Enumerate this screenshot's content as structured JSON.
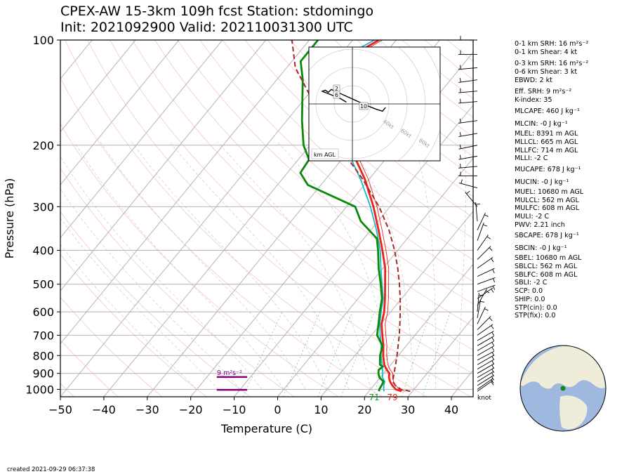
{
  "title_line1": "CPEX-AW 15-3km  109h fcst  Station: stdomingo",
  "title_line2": "Init: 2021092900  Valid: 202110031300 UTC",
  "footer": "created 2021-09-29 06:37:38",
  "indices": [
    "0-1 km SRH: 16 m²s⁻²",
    "0-1 km Shear: 4 kt",
    "0-3 km SRH: 16 m²s⁻²",
    "0-6 km Shear: 3 kt",
    "EBWD: 2 kt",
    "Eff. SRH: 9 m²s⁻²",
    "K-index: 35",
    "MLCAPE: 460 J kg⁻¹",
    "MLCIN: -0 J kg⁻¹",
    "MLEL: 8391 m AGL",
    "MLLCL: 665 m AGL",
    "MLLFC: 714 m AGL",
    "MLLI: -2 C",
    "MUCAPE: 678 J kg⁻¹",
    "MUCIN: -0 J kg⁻¹",
    "MUEL: 10680 m AGL",
    "MULCL: 562 m AGL",
    "MULFC: 608 m AGL",
    "MULI: -2 C",
    "PWV: 2.21 inch",
    "SBCAPE: 678 J kg⁻¹",
    "SBCIN: -0 J kg⁻¹",
    "SBEL: 10680 m AGL",
    "SBLCL: 562 m AGL",
    "SBLFC: 608 m AGL",
    "SBLI: -2 C",
    "SCP: 0.0",
    "SHIP: 0.0",
    "STP(cin): 0.0",
    "STP(fix): 0.0"
  ],
  "chart_data": {
    "type": "line",
    "subtype": "skew-T log-P sounding",
    "xlabel": "Temperature (C)",
    "ylabel": "Pressure (hPa)",
    "xlim": [
      -50,
      45
    ],
    "ylim": [
      1050,
      100
    ],
    "y_scale": "log",
    "x_ticks": [
      "−50",
      "−40",
      "−30",
      "−20",
      "−10",
      "0",
      "10",
      "20",
      "30",
      "40"
    ],
    "y_ticks": [
      1000,
      900,
      800,
      700,
      600,
      500,
      400,
      300,
      200,
      100
    ],
    "surface_temperature_label": "79",
    "surface_dewpoint_label": "71",
    "wind_units_label": "knot",
    "srh_bar_label": "9 m²s⁻²",
    "colors": {
      "temperature": "#e8231e",
      "dewpoint": "#0a8a0a",
      "wetbulb": "#1ab8c4",
      "parcel": "#a52a2a",
      "srh": "#800080"
    },
    "series": [
      {
        "key": "temperature",
        "points": [
          [
            1013,
            27.5
          ],
          [
            1000,
            25.8
          ],
          [
            975,
            24.3
          ],
          [
            950,
            23
          ],
          [
            925,
            22
          ],
          [
            900,
            21.3
          ],
          [
            875,
            19.8
          ],
          [
            850,
            18.5
          ],
          [
            800,
            16.5
          ],
          [
            750,
            14.7
          ],
          [
            700,
            12.5
          ],
          [
            650,
            10.2
          ],
          [
            600,
            8.5
          ],
          [
            550,
            6.2
          ],
          [
            500,
            3.5
          ],
          [
            450,
            0.5
          ],
          [
            400,
            -3.5
          ],
          [
            350,
            -8.2
          ],
          [
            300,
            -13.8
          ],
          [
            250,
            -21
          ],
          [
            200,
            -31
          ],
          [
            170,
            -37.5
          ],
          [
            150,
            -42.5
          ],
          [
            130,
            -47.5
          ],
          [
            115,
            -48.5
          ],
          [
            100,
            -44
          ]
        ]
      },
      {
        "key": "dewpoint",
        "points": [
          [
            1013,
            22.3
          ],
          [
            1000,
            22
          ],
          [
            975,
            21.8
          ],
          [
            950,
            21.5
          ],
          [
            925,
            19.8
          ],
          [
            900,
            18.8
          ],
          [
            880,
            18.2
          ],
          [
            860,
            18.5
          ],
          [
            850,
            17.5
          ],
          [
            800,
            15.8
          ],
          [
            750,
            14.5
          ],
          [
            700,
            11.3
          ],
          [
            650,
            9.5
          ],
          [
            600,
            7.5
          ],
          [
            550,
            5.5
          ],
          [
            500,
            2.5
          ],
          [
            450,
            -1
          ],
          [
            400,
            -4.5
          ],
          [
            370,
            -7
          ],
          [
            330,
            -14
          ],
          [
            300,
            -18
          ],
          [
            260,
            -33
          ],
          [
            240,
            -37
          ],
          [
            220,
            -37.5
          ],
          [
            200,
            -41.5
          ],
          [
            170,
            -46.5
          ],
          [
            150,
            -50
          ],
          [
            130,
            -54
          ],
          [
            115,
            -58
          ],
          [
            100,
            -58
          ]
        ]
      },
      {
        "key": "wetbulb",
        "points": [
          [
            1013,
            23.5
          ],
          [
            1000,
            23
          ],
          [
            975,
            22.3
          ],
          [
            950,
            21.8
          ],
          [
            925,
            20.5
          ],
          [
            900,
            19.8
          ],
          [
            850,
            18
          ],
          [
            800,
            16
          ],
          [
            750,
            14.2
          ],
          [
            700,
            12
          ],
          [
            650,
            9.8
          ],
          [
            600,
            7.8
          ],
          [
            550,
            5.8
          ],
          [
            500,
            2.8
          ],
          [
            450,
            -0.5
          ],
          [
            400,
            -4
          ],
          [
            350,
            -8.7
          ],
          [
            300,
            -14.5
          ],
          [
            250,
            -22
          ],
          [
            200,
            -32
          ],
          [
            170,
            -38.5
          ],
          [
            150,
            -43.5
          ],
          [
            130,
            -48.5
          ],
          [
            115,
            -50
          ],
          [
            100,
            -45
          ]
        ]
      },
      {
        "key": "parcel",
        "points": [
          [
            1013,
            29.5
          ],
          [
            1000,
            27
          ],
          [
            975,
            25
          ],
          [
            950,
            23.6
          ],
          [
            925,
            23
          ],
          [
            900,
            22.4
          ],
          [
            850,
            21.1
          ],
          [
            800,
            19.7
          ],
          [
            750,
            18.1
          ],
          [
            700,
            16.4
          ],
          [
            650,
            14.4
          ],
          [
            600,
            12.2
          ],
          [
            550,
            9.7
          ],
          [
            500,
            6.8
          ],
          [
            450,
            3.4
          ],
          [
            400,
            -0.7
          ],
          [
            350,
            -5.8
          ],
          [
            300,
            -12.5
          ],
          [
            250,
            -21.5
          ],
          [
            200,
            -33.5
          ],
          [
            150,
            -47.5
          ],
          [
            120,
            -58
          ],
          [
            100,
            -64
          ]
        ]
      }
    ],
    "hodograph": {
      "label": "km AGL",
      "ring_labels": [
        "40kt",
        "60kt",
        "80kt"
      ],
      "height_labels": [
        "2",
        "6",
        "10"
      ],
      "points": [
        [
          -2,
          0.5
        ],
        [
          -4,
          1.5
        ],
        [
          -7,
          2.5
        ],
        [
          -10,
          3.5
        ],
        [
          -9,
          3.8
        ],
        [
          -8,
          3.2
        ],
        [
          -7,
          4
        ],
        [
          -3,
          2.5
        ],
        [
          1,
          1
        ],
        [
          5,
          -0.5
        ],
        [
          8,
          -1.5
        ],
        [
          10,
          -2
        ],
        [
          11,
          -1
        ]
      ]
    },
    "srh_bars": [
      {
        "pressure": 922,
        "t_start": -14,
        "t_end": -7
      },
      {
        "pressure": 1003,
        "t_start": -14,
        "t_end": -7
      }
    ],
    "wind_barbs": [
      {
        "p": 100,
        "speed": 5,
        "dir": 270
      },
      {
        "p": 110,
        "speed": 5,
        "dir": 270
      },
      {
        "p": 120,
        "speed": 5,
        "dir": 265
      },
      {
        "p": 130,
        "speed": 5,
        "dir": 262
      },
      {
        "p": 140,
        "speed": 5,
        "dir": 265
      },
      {
        "p": 150,
        "speed": 5,
        "dir": 265
      },
      {
        "p": 170,
        "speed": 5,
        "dir": 262
      },
      {
        "p": 185,
        "speed": 5,
        "dir": 260
      },
      {
        "p": 200,
        "speed": 5,
        "dir": 258
      },
      {
        "p": 215,
        "speed": 5,
        "dir": 260
      },
      {
        "p": 230,
        "speed": 5,
        "dir": 265
      },
      {
        "p": 245,
        "speed": 5,
        "dir": 270
      },
      {
        "p": 265,
        "speed": 5,
        "dir": 285
      },
      {
        "p": 300,
        "speed": 5,
        "dir": 320
      },
      {
        "p": 330,
        "speed": 5,
        "dir": 355
      },
      {
        "p": 350,
        "speed": 5,
        "dir": 25
      },
      {
        "p": 375,
        "speed": 5,
        "dir": 20
      },
      {
        "p": 400,
        "speed": 5,
        "dir": 35
      },
      {
        "p": 425,
        "speed": 5,
        "dir": 45
      },
      {
        "p": 450,
        "speed": 5,
        "dir": 55
      },
      {
        "p": 475,
        "speed": 5,
        "dir": 65
      },
      {
        "p": 500,
        "speed": 5,
        "dir": 70
      },
      {
        "p": 525,
        "speed": 5,
        "dir": 70
      },
      {
        "p": 550,
        "speed": 5,
        "dir": 55
      },
      {
        "p": 575,
        "speed": 5,
        "dir": 30
      },
      {
        "p": 600,
        "speed": 5,
        "dir": 5
      },
      {
        "p": 625,
        "speed": 5,
        "dir": 10
      },
      {
        "p": 650,
        "speed": 5,
        "dir": 25
      },
      {
        "p": 675,
        "speed": 5,
        "dir": 45
      },
      {
        "p": 700,
        "speed": 5,
        "dir": 55
      },
      {
        "p": 725,
        "speed": 5,
        "dir": 60
      },
      {
        "p": 750,
        "speed": 5,
        "dir": 60
      },
      {
        "p": 775,
        "speed": 5,
        "dir": 60
      },
      {
        "p": 800,
        "speed": 5,
        "dir": 60
      },
      {
        "p": 825,
        "speed": 5,
        "dir": 62
      },
      {
        "p": 850,
        "speed": 5,
        "dir": 60
      },
      {
        "p": 875,
        "speed": 5,
        "dir": 60
      },
      {
        "p": 900,
        "speed": 5,
        "dir": 60
      },
      {
        "p": 925,
        "speed": 5,
        "dir": 60
      },
      {
        "p": 950,
        "speed": 5,
        "dir": 58
      },
      {
        "p": 975,
        "speed": 5,
        "dir": 58
      },
      {
        "p": 1000,
        "speed": 5,
        "dir": 55
      },
      {
        "p": 1013,
        "speed": 5,
        "dir": 55
      }
    ],
    "locator_map": {
      "marker": "station",
      "colors": {
        "ocean": "#9fb8e0",
        "land": "#efedd9",
        "marker": "#118a11"
      }
    }
  }
}
